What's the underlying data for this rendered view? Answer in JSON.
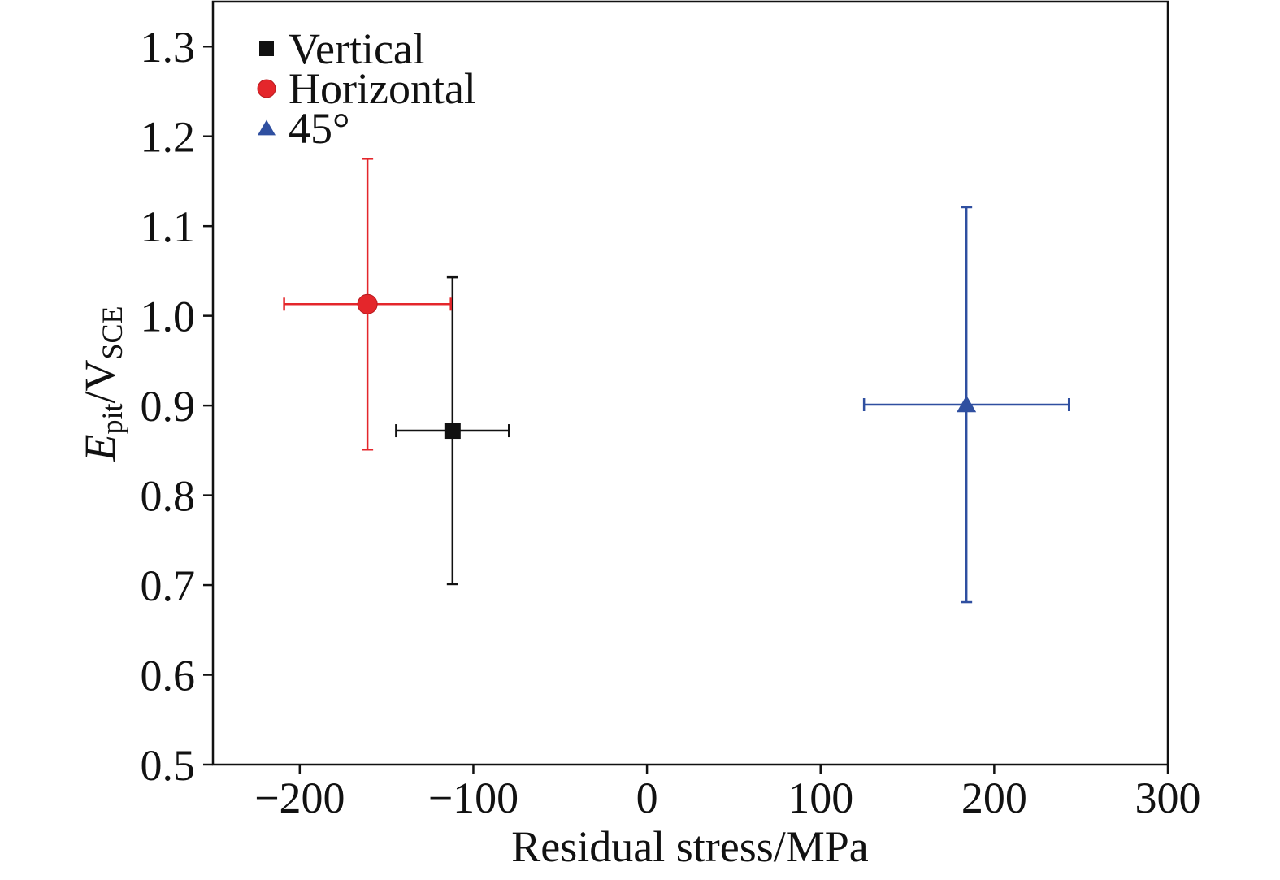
{
  "chart_data": {
    "type": "scatter",
    "xlabel": "Residual stress/MPa",
    "ylabel": {
      "symbol": "E",
      "symbol_sub": "pit",
      "separator": "/",
      "unit": "V",
      "unit_sub": "SCE"
    },
    "x_axis": {
      "min": -250,
      "max": 300,
      "ticks": [
        -200,
        -100,
        0,
        100,
        200,
        300
      ],
      "tick_labels": [
        "−200",
        "−100",
        "0",
        "100",
        "200",
        "300"
      ]
    },
    "y_axis": {
      "min": 0.5,
      "max": 1.35,
      "ticks": [
        0.5,
        0.6,
        0.7,
        0.8,
        0.9,
        1.0,
        1.1,
        1.2,
        1.3
      ],
      "tick_labels": [
        "0.5",
        "0.6",
        "0.7",
        "0.8",
        "0.9",
        "1.0",
        "1.1",
        "1.2",
        "1.3"
      ]
    },
    "grid": false,
    "legend": {
      "placement": "top-left"
    },
    "series": [
      {
        "name": "Vertical",
        "marker": "square",
        "color": "#111111",
        "points": [
          {
            "x": -112,
            "y": 0.872,
            "xerr": 32.5,
            "yerr": 0.171
          }
        ]
      },
      {
        "name": "Horizontal",
        "marker": "circle",
        "color": "#e4262b",
        "points": [
          {
            "x": -161,
            "y": 1.013,
            "xerr": 48,
            "yerr": 0.162
          }
        ]
      },
      {
        "name": "45°",
        "marker": "triangle",
        "color": "#2f4fa0",
        "points": [
          {
            "x": 184,
            "y": 0.901,
            "xerr": 59,
            "yerr": 0.22
          }
        ]
      }
    ]
  }
}
